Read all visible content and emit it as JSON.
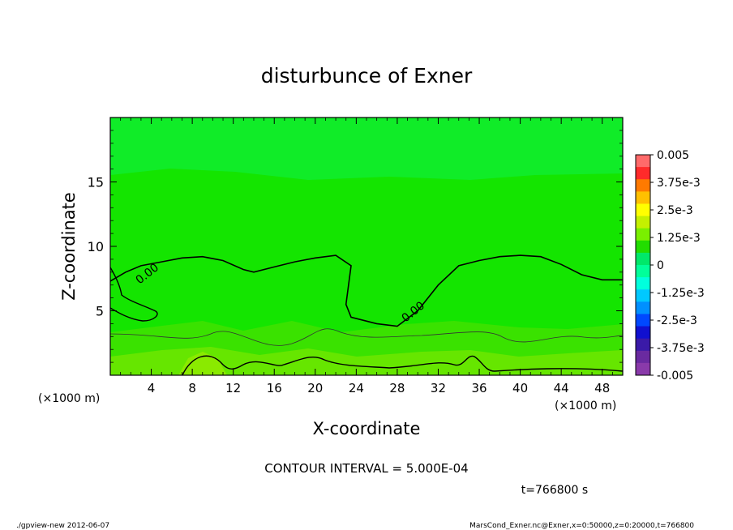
{
  "chart_data": {
    "type": "heatmap",
    "title": "disturbunce of Exner",
    "xlabel": "X-coordinate",
    "ylabel": "Z-coordinate",
    "x_unit": "(×1000 m)",
    "y_unit": "(×1000 m)",
    "xlim": [
      0,
      50
    ],
    "ylim": [
      0,
      20
    ],
    "x_ticks": [
      4,
      8,
      12,
      16,
      20,
      24,
      28,
      32,
      36,
      40,
      44,
      48
    ],
    "y_ticks": [
      5,
      10,
      15
    ],
    "contour_label": "0.00",
    "contour_interval_text": "CONTOUR INTERVAL = 5.000E-04",
    "time_text": "t=766800 s",
    "colorbar": {
      "labels": [
        "0.005",
        "3.75e-3",
        "2.5e-3",
        "1.25e-3",
        "0",
        "-1.25e-3",
        "-2.5e-3",
        "-3.75e-3",
        "-0.005"
      ],
      "colors": [
        "#ff6a6a",
        "#ff2a2a",
        "#ff7a00",
        "#ffc000",
        "#ffff00",
        "#c4f000",
        "#7af000",
        "#22dd00",
        "#00e86a",
        "#00ff9a",
        "#00ffdd",
        "#00c8ff",
        "#0090ff",
        "#0048ff",
        "#1010d0",
        "#3a1aa8",
        "#6a2aa0",
        "#8a3aaa"
      ]
    },
    "zero_contour_x": [
      0,
      1.5,
      3,
      5,
      7,
      9,
      11,
      13,
      14,
      16,
      18,
      20,
      22,
      23.5,
      23,
      23.5,
      26,
      28,
      30,
      32,
      34,
      36,
      38,
      40,
      42,
      44,
      46,
      48,
      50
    ],
    "zero_contour_z": [
      7.3,
      8,
      8.5,
      8.8,
      9.1,
      9.2,
      8.9,
      8.2,
      8,
      8.4,
      8.8,
      9.1,
      9.3,
      8.5,
      5.5,
      4.5,
      4,
      3.8,
      5,
      7,
      8.5,
      8.9,
      9.2,
      9.3,
      9.2,
      8.6,
      7.8,
      7.4,
      7.4
    ]
  },
  "footer": {
    "left": "./gpview-new   2012-06-07",
    "right": "MarsCond_Exner.nc@Exner,x=0:50000,z=0:20000,t=766800"
  }
}
